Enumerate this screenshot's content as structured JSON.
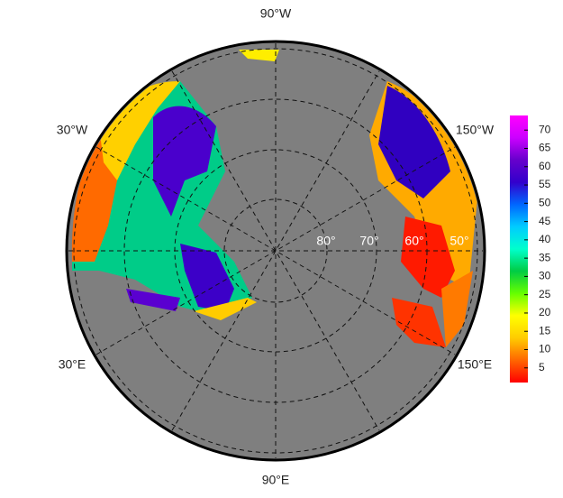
{
  "map": {
    "longitude_labels": [
      "90°W",
      "30°W",
      "150°W",
      "30°E",
      "150°E",
      "90°E"
    ],
    "latitude_labels": [
      "80°",
      "70°",
      "60°",
      "50°"
    ]
  },
  "colorbar": {
    "lim": [
      1,
      74
    ],
    "ticks": [
      5,
      10,
      15,
      20,
      25,
      30,
      35,
      40,
      45,
      50,
      55,
      60,
      65,
      70
    ],
    "colors": [
      "#ff0000",
      "#ff6600",
      "#ffcc00",
      "#ffff00",
      "#66ff00",
      "#00cc44",
      "#00ffcc",
      "#00ccff",
      "#0066ff",
      "#3300cc",
      "#6600cc",
      "#cc00ff",
      "#ff00ff"
    ]
  }
}
